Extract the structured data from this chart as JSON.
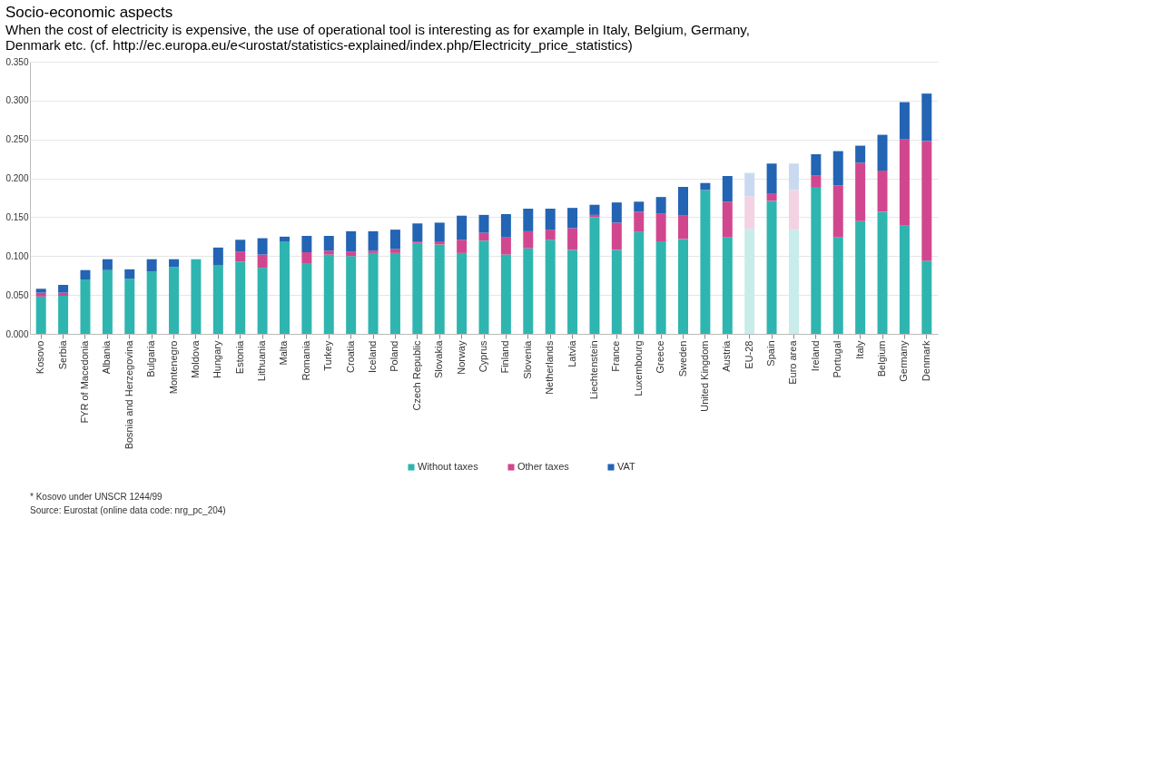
{
  "chart_data": {
    "type": "bar",
    "stacked": true,
    "title": "Socio-economic aspects",
    "subtitle": "When the cost of electricity is expensive, the use of operational tool is interesting as for example in Italy, Belgium, Germany, Denmark etc. (cf. http://ec.europa.eu/e<urostat/statistics-explained/index.php/Electricity_price_statistics)",
    "annotations": [
      "* Kosovo under UNSCR 1244/99",
      "Source: Eurostat (online data code: nrg_pc_204)"
    ],
    "categories": [
      "Kosovo",
      "Serbia",
      "FYR of Macedonia",
      "Albania",
      "Bosnia and Herzegovina",
      "Bulgaria",
      "Montenegro",
      "Moldova",
      "Hungary",
      "Estonia",
      "Lithuania",
      "Malta",
      "Romania",
      "Turkey",
      "Croatia",
      "Iceland",
      "Poland",
      "Czech Republic",
      "Slovakia",
      "Norway",
      "Cyprus",
      "Finland",
      "Slovenia",
      "Netherlands",
      "Latvia",
      "Liechtenstein",
      "France",
      "Luxembourg",
      "Greece",
      "Sweden",
      "United Kingdom",
      "Austria",
      "EU-28",
      "Spain",
      "Euro area",
      "Ireland",
      "Portugal",
      "Italy",
      "Belgium",
      "Germany",
      "Denmark"
    ],
    "series": [
      {
        "name": "Without taxes",
        "color": "#2fb5b0",
        "colors": [
          "#2fb5b0",
          "#2fb5b0",
          "#2fb5b0",
          "#2fb5b0",
          "#2fb5b0",
          "#2fb5b0",
          "#2fb5b0",
          "#2fb5b0",
          "#2fb5b0",
          "#2fb5b0",
          "#2fb5b0",
          "#2fb5b0",
          "#2fb5b0",
          "#2fb5b0",
          "#2fb5b0",
          "#2fb5b0",
          "#2fb5b0",
          "#2fb5b0",
          "#2fb5b0",
          "#2fb5b0",
          "#2fb5b0",
          "#2fb5b0",
          "#2fb5b0",
          "#2fb5b0",
          "#2fb5b0",
          "#2fb5b0",
          "#2fb5b0",
          "#2fb5b0",
          "#2fb5b0",
          "#2fb5b0",
          "#2fb5b0",
          "#2fb5b0",
          "#c8ecea",
          "#2fb5b0",
          "#c8ecea",
          "#2fb5b0",
          "#2fb5b0",
          "#2fb5b0",
          "#2fb5b0",
          "#2fb5b0",
          "#2fb5b0"
        ],
        "values": [
          0.048,
          0.049,
          0.07,
          0.082,
          0.071,
          0.08,
          0.086,
          0.096,
          0.088,
          0.093,
          0.085,
          0.119,
          0.091,
          0.102,
          0.1,
          0.104,
          0.104,
          0.117,
          0.115,
          0.104,
          0.12,
          0.102,
          0.11,
          0.121,
          0.108,
          0.15,
          0.108,
          0.131,
          0.119,
          0.122,
          0.185,
          0.124,
          0.135,
          0.171,
          0.134,
          0.188,
          0.124,
          0.145,
          0.157,
          0.139,
          0.094
        ]
      },
      {
        "name": "Other taxes",
        "color": "#d1478f",
        "colors": [
          "#d1478f",
          "#d1478f",
          "#d1478f",
          "#d1478f",
          "#d1478f",
          "#d1478f",
          "#d1478f",
          "#d1478f",
          "#d1478f",
          "#d1478f",
          "#d1478f",
          "#d1478f",
          "#d1478f",
          "#d1478f",
          "#d1478f",
          "#d1478f",
          "#d1478f",
          "#d1478f",
          "#d1478f",
          "#d1478f",
          "#d1478f",
          "#d1478f",
          "#d1478f",
          "#d1478f",
          "#d1478f",
          "#d1478f",
          "#d1478f",
          "#d1478f",
          "#d1478f",
          "#d1478f",
          "#d1478f",
          "#d1478f",
          "#f3d3e3",
          "#d1478f",
          "#f3d3e3",
          "#d1478f",
          "#d1478f",
          "#d1478f",
          "#d1478f",
          "#d1478f",
          "#d1478f"
        ],
        "values": [
          0.005,
          0.004,
          0,
          0,
          0,
          0,
          0,
          0,
          0,
          0.013,
          0.017,
          0,
          0.014,
          0.005,
          0.006,
          0.003,
          0.005,
          0.002,
          0.004,
          0.017,
          0.01,
          0.022,
          0.022,
          0.013,
          0.028,
          0.003,
          0.035,
          0.026,
          0.036,
          0.03,
          0,
          0.046,
          0.042,
          0.009,
          0.051,
          0.016,
          0.067,
          0.075,
          0.053,
          0.111,
          0.154
        ]
      },
      {
        "name": "VAT",
        "color": "#2364b4",
        "colors": [
          "#2364b4",
          "#2364b4",
          "#2364b4",
          "#2364b4",
          "#2364b4",
          "#2364b4",
          "#2364b4",
          "#2364b4",
          "#2364b4",
          "#2364b4",
          "#2364b4",
          "#2364b4",
          "#2364b4",
          "#2364b4",
          "#2364b4",
          "#2364b4",
          "#2364b4",
          "#2364b4",
          "#2364b4",
          "#2364b4",
          "#2364b4",
          "#2364b4",
          "#2364b4",
          "#2364b4",
          "#2364b4",
          "#2364b4",
          "#2364b4",
          "#2364b4",
          "#2364b4",
          "#2364b4",
          "#2364b4",
          "#2364b4",
          "#c9daf0",
          "#2364b4",
          "#c9daf0",
          "#2364b4",
          "#2364b4",
          "#2364b4",
          "#2364b4",
          "#2364b4",
          "#2364b4"
        ],
        "values": [
          0.005,
          0.01,
          0.012,
          0.014,
          0.012,
          0.016,
          0.01,
          0,
          0.023,
          0.015,
          0.021,
          0.006,
          0.021,
          0.019,
          0.026,
          0.025,
          0.025,
          0.023,
          0.024,
          0.031,
          0.023,
          0.03,
          0.029,
          0.027,
          0.026,
          0.013,
          0.026,
          0.013,
          0.021,
          0.037,
          0.009,
          0.033,
          0.03,
          0.039,
          0.034,
          0.027,
          0.044,
          0.022,
          0.046,
          0.048,
          0.061
        ]
      }
    ],
    "ylim": [
      0,
      0.35
    ],
    "yticks": [
      {
        "value": 0,
        "label": "0.000"
      },
      {
        "value": 0.05,
        "label": "0.050"
      },
      {
        "value": 0.1,
        "label": "0.100"
      },
      {
        "value": 0.15,
        "label": "0.150"
      },
      {
        "value": 0.2,
        "label": "0.200"
      },
      {
        "value": 0.25,
        "label": "0.250"
      },
      {
        "value": 0.3,
        "label": "0.300"
      },
      {
        "value": 0.35,
        "label": "0.350"
      }
    ],
    "grid": "y",
    "legend": "bottom"
  }
}
